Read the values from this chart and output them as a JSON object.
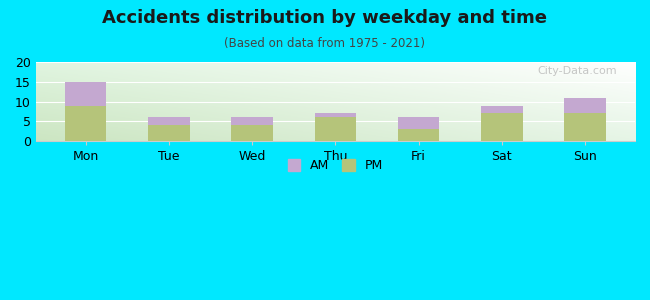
{
  "categories": [
    "Mon",
    "Tue",
    "Wed",
    "Thu",
    "Fri",
    "Sat",
    "Sun"
  ],
  "pm_values": [
    9,
    4,
    4,
    6,
    3,
    7,
    7
  ],
  "am_values": [
    6,
    2,
    2,
    1,
    3,
    2,
    4
  ],
  "pm_color": "#b5c47a",
  "am_color": "#c4a8d0",
  "title": "Accidents distribution by weekday and time",
  "subtitle": "(Based on data from 1975 - 2021)",
  "ylim": [
    0,
    20
  ],
  "yticks": [
    0,
    5,
    10,
    15,
    20
  ],
  "background_color": "#00e8ff",
  "bar_width": 0.5,
  "legend_labels": [
    "AM",
    "PM"
  ],
  "watermark": "City-Data.com"
}
